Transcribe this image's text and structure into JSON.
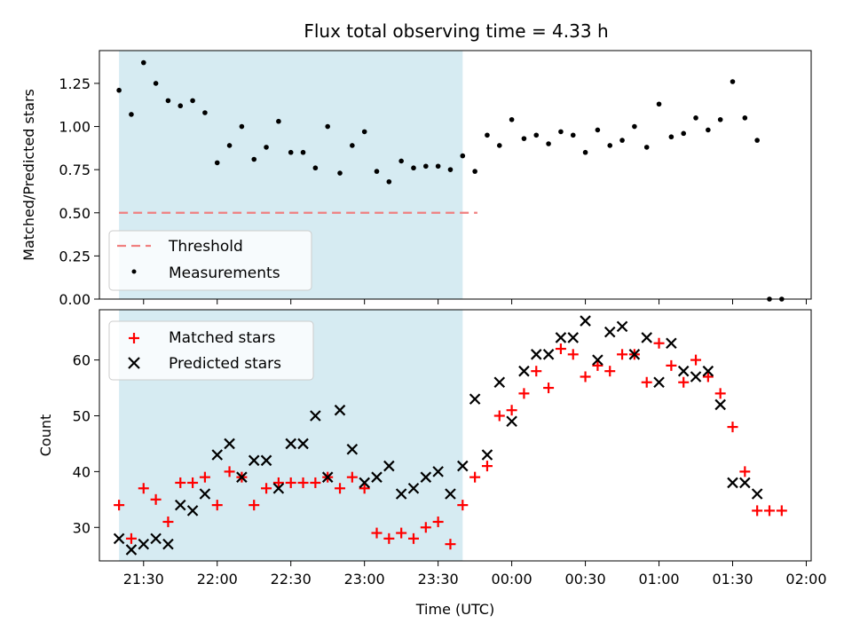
{
  "chart_data": [
    {
      "type": "scatter",
      "title": "Flux total observing time = 4.33 h",
      "xlabel": "",
      "ylabel": "Matched/Predicted stars",
      "ylim": [
        0,
        1.44
      ],
      "yticks": [
        "0.00",
        "0.25",
        "0.50",
        "0.75",
        "1.00",
        "1.25"
      ],
      "observing_window": [
        "21:20",
        "23:40"
      ],
      "threshold": {
        "name": "Threshold",
        "value": 0.5,
        "x_range": [
          "21:20",
          "23:46"
        ],
        "color": "#f08080"
      },
      "legend": {
        "position": "lower-left"
      },
      "series": [
        {
          "name": "Measurements",
          "color": "#000000",
          "marker": "dot",
          "x": [
            "21:20",
            "21:25",
            "21:30",
            "21:35",
            "21:40",
            "21:45",
            "21:50",
            "21:55",
            "22:00",
            "22:05",
            "22:10",
            "22:15",
            "22:20",
            "22:25",
            "22:30",
            "22:35",
            "22:40",
            "22:45",
            "22:50",
            "22:55",
            "23:00",
            "23:05",
            "23:10",
            "23:15",
            "23:20",
            "23:25",
            "23:30",
            "23:35",
            "23:40",
            "23:45",
            "23:50",
            "23:55",
            "00:00",
            "00:05",
            "00:10",
            "00:15",
            "00:20",
            "00:25",
            "00:30",
            "00:35",
            "00:40",
            "00:45",
            "00:50",
            "00:55",
            "01:00",
            "01:05",
            "01:10",
            "01:15",
            "01:20",
            "01:25",
            "01:30",
            "01:35",
            "01:40",
            "01:45",
            "01:50"
          ],
          "y": [
            1.21,
            1.07,
            1.37,
            1.25,
            1.15,
            1.12,
            1.15,
            1.08,
            0.79,
            0.89,
            1.0,
            0.81,
            0.88,
            1.03,
            0.85,
            0.85,
            0.76,
            1.0,
            0.73,
            0.89,
            0.97,
            0.74,
            0.68,
            0.8,
            0.76,
            0.77,
            0.77,
            0.75,
            0.83,
            0.74,
            0.95,
            0.89,
            1.04,
            0.93,
            0.95,
            0.9,
            0.97,
            0.95,
            0.85,
            0.98,
            0.89,
            0.92,
            1.0,
            0.88,
            1.13,
            0.94,
            0.96,
            1.05,
            0.98,
            1.04,
            1.26,
            1.05,
            0.92,
            0.0,
            0.0
          ]
        }
      ]
    },
    {
      "type": "scatter",
      "title": "",
      "xlabel": "Time (UTC)",
      "ylabel": "Count",
      "ylim": [
        24,
        69
      ],
      "yticks": [
        "30",
        "40",
        "50",
        "60"
      ],
      "xlim": [
        "21:12",
        "02:02"
      ],
      "xticks": [
        "21:30",
        "22:00",
        "22:30",
        "23:00",
        "23:30",
        "00:00",
        "00:30",
        "01:00",
        "01:30",
        "02:00"
      ],
      "observing_window": [
        "21:20",
        "23:40"
      ],
      "legend": {
        "position": "top-left"
      },
      "series": [
        {
          "name": "Matched stars",
          "color": "#ff0000",
          "marker": "plus",
          "x": [
            "21:20",
            "21:25",
            "21:30",
            "21:35",
            "21:40",
            "21:45",
            "21:50",
            "21:55",
            "22:00",
            "22:05",
            "22:10",
            "22:15",
            "22:20",
            "22:25",
            "22:30",
            "22:35",
            "22:40",
            "22:45",
            "22:50",
            "22:55",
            "23:00",
            "23:05",
            "23:10",
            "23:15",
            "23:20",
            "23:25",
            "23:30",
            "23:35",
            "23:40",
            "23:45",
            "23:50",
            "23:55",
            "00:00",
            "00:05",
            "00:10",
            "00:15",
            "00:20",
            "00:25",
            "00:30",
            "00:35",
            "00:40",
            "00:45",
            "00:50",
            "00:55",
            "01:00",
            "01:05",
            "01:10",
            "01:15",
            "01:20",
            "01:25",
            "01:30",
            "01:35",
            "01:40",
            "01:45",
            "01:50"
          ],
          "y": [
            34,
            28,
            37,
            35,
            31,
            38,
            38,
            39,
            34,
            40,
            39,
            34,
            37,
            38,
            38,
            38,
            38,
            39,
            37,
            39,
            37,
            29,
            28,
            29,
            28,
            30,
            31,
            27,
            34,
            39,
            41,
            50,
            51,
            54,
            58,
            55,
            62,
            61,
            57,
            59,
            58,
            61,
            61,
            56,
            63,
            59,
            56,
            60,
            57,
            54,
            48,
            40,
            33,
            33,
            33
          ]
        },
        {
          "name": "Predicted stars",
          "color": "#000000",
          "marker": "x",
          "x": [
            "21:20",
            "21:25",
            "21:30",
            "21:35",
            "21:40",
            "21:45",
            "21:50",
            "21:55",
            "22:00",
            "22:05",
            "22:10",
            "22:15",
            "22:20",
            "22:25",
            "22:30",
            "22:35",
            "22:40",
            "22:45",
            "22:50",
            "22:55",
            "23:00",
            "23:05",
            "23:10",
            "23:15",
            "23:20",
            "23:25",
            "23:30",
            "23:35",
            "23:40",
            "23:45",
            "23:50",
            "23:55",
            "00:00",
            "00:05",
            "00:10",
            "00:15",
            "00:20",
            "00:25",
            "00:30",
            "00:35",
            "00:40",
            "00:45",
            "00:50",
            "00:55",
            "01:00",
            "01:05",
            "01:10",
            "01:15",
            "01:20",
            "01:25",
            "01:30",
            "01:35",
            "01:40"
          ],
          "y": [
            28,
            26,
            27,
            28,
            27,
            34,
            33,
            36,
            43,
            45,
            39,
            42,
            42,
            37,
            45,
            45,
            50,
            39,
            51,
            44,
            38,
            39,
            41,
            36,
            37,
            39,
            40,
            36,
            41,
            53,
            43,
            56,
            49,
            58,
            61,
            61,
            64,
            64,
            67,
            60,
            65,
            66,
            61,
            64,
            56,
            63,
            58,
            57,
            58,
            52,
            38,
            38,
            36
          ]
        }
      ]
    }
  ]
}
